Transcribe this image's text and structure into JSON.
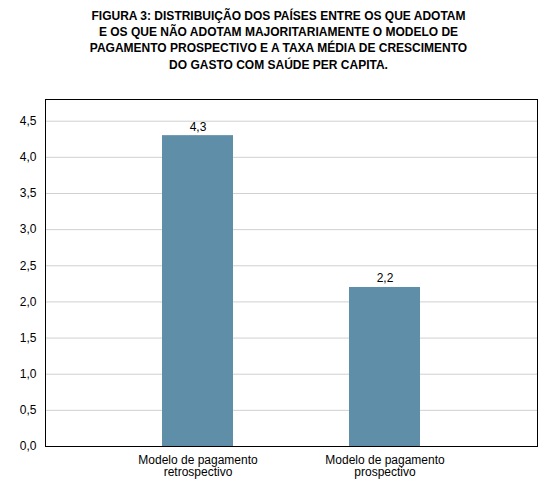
{
  "chart_data": {
    "type": "bar",
    "title": "FIGURA 3: DISTRIBUIÇÃO DOS PAÍSES ENTRE OS QUE ADOTAM\nE OS QUE NÃO ADOTAM MAJORITARIAMENTE O MODELO DE\nPAGAMENTO PROSPECTIVO E A TAXA MÉDIA DE CRESCIMENTO\nDO GASTO COM SAÚDE PER CAPITA.",
    "categories": [
      "Modelo de pagamento\nretrospectivo",
      "Modelo de pagamento\nprospectivo"
    ],
    "values": [
      4.3,
      2.2
    ],
    "value_labels": [
      "4,3",
      "2,2"
    ],
    "data_labels": true,
    "color": "#5f8fa8",
    "ylim": [
      0,
      4.8
    ],
    "yticks": [
      {
        "value": 0.0,
        "label": "0,0"
      },
      {
        "value": 0.5,
        "label": "0,5"
      },
      {
        "value": 1.0,
        "label": "1,0"
      },
      {
        "value": 1.5,
        "label": "1,5"
      },
      {
        "value": 2.0,
        "label": "2,0"
      },
      {
        "value": 2.5,
        "label": "2,5"
      },
      {
        "value": 3.0,
        "label": "3,0"
      },
      {
        "value": 3.5,
        "label": "3,5"
      },
      {
        "value": 4.0,
        "label": "4,0"
      },
      {
        "value": 4.5,
        "label": "4,5"
      }
    ],
    "grid": true
  }
}
